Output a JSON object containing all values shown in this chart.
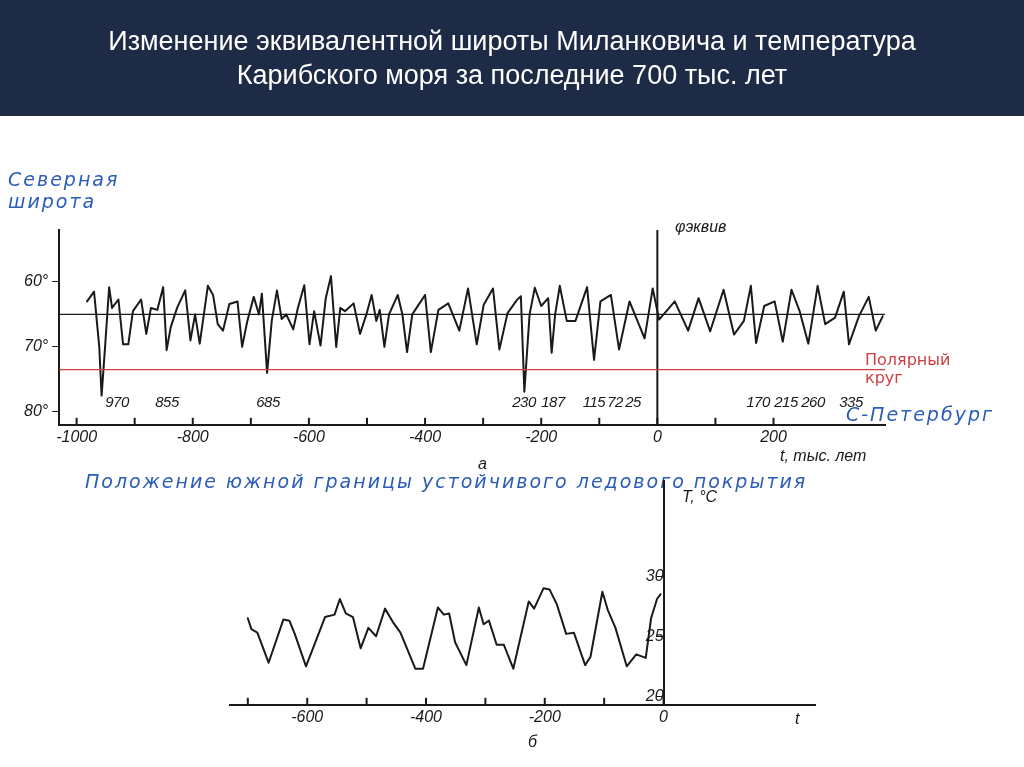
{
  "chart_data": [
    {
      "type": "line",
      "title": "Изменение эквивалентной широты Миланковича и температура Карибского моря за последние 700  тыс. лет",
      "xlabel": "t, тыс. лет",
      "ylabel": "Северная широта",
      "color": "#1a1a1a",
      "marker": "none",
      "grid": false,
      "legend": false,
      "x": [
        -982,
        -970,
        -961,
        -957,
        -951,
        -944,
        -939,
        -928,
        -920,
        -911,
        -903,
        -889,
        -880,
        -872,
        -861,
        -851,
        -845,
        -838,
        -827,
        -813,
        -804,
        -796,
        -788,
        -774,
        -765,
        -757,
        -748,
        -737,
        -723,
        -715,
        -706,
        -695,
        -686,
        -681,
        -672,
        -664,
        -655,
        -647,
        -639,
        -627,
        -619,
        -608,
        -599,
        -591,
        -580,
        -571,
        -562,
        -553,
        -546,
        -538,
        -523,
        -512,
        -501,
        -492,
        -484,
        -478,
        -470,
        -462,
        -447,
        -439,
        -431,
        -422,
        -411,
        -400,
        -390,
        -377,
        -360,
        -341,
        -326,
        -311,
        -299,
        -283,
        -272,
        -258,
        -242,
        -235,
        -229,
        -220,
        -211,
        -200,
        -188,
        -182,
        -176,
        -168,
        -156,
        -141,
        -121,
        -109,
        -98,
        -80,
        -66,
        -48,
        -22,
        -8,
        3,
        30,
        53,
        71,
        91,
        114,
        132,
        149,
        161,
        170,
        184,
        202,
        216,
        231,
        245,
        260,
        276,
        289,
        306,
        321,
        330,
        347,
        364,
        376,
        388
      ],
      "values": [
        63,
        61.5,
        70,
        77.5,
        70,
        60.8,
        64,
        62.7,
        69.6,
        69.6,
        64.5,
        62.7,
        68,
        64,
        64.3,
        60.8,
        70.5,
        67,
        64,
        61.3,
        69,
        65,
        69.5,
        60.6,
        62,
        66.5,
        67.5,
        63.4,
        63,
        70,
        66,
        62.3,
        65,
        61.8,
        74,
        66,
        61.3,
        65.7,
        65,
        67.3,
        64,
        60.5,
        69.6,
        64.5,
        69.8,
        62.5,
        59.1,
        70,
        64,
        64.5,
        63.3,
        68,
        65,
        62,
        66,
        64.3,
        70,
        65,
        62,
        65,
        70.8,
        65,
        63.5,
        62,
        70.8,
        64.3,
        63.3,
        67.5,
        61,
        69.6,
        63.5,
        61,
        70.4,
        64.8,
        62.8,
        62.2,
        76.9,
        65,
        60.9,
        63.7,
        62.5,
        70.9,
        65,
        60.6,
        66,
        66,
        60.8,
        72,
        63,
        62,
        70.4,
        63,
        68.7,
        61,
        65.8,
        63,
        67.5,
        62.5,
        67.6,
        61.2,
        68.1,
        66,
        60.6,
        69.4,
        63.7,
        63,
        69.2,
        61.2,
        64.5,
        69.5,
        60.6,
        66.5,
        65.5,
        61.5,
        69.6,
        65.3,
        62.3,
        67.5,
        65.3
      ],
      "xlim": [
        -1030,
        392
      ],
      "xticks": [
        -1000,
        {
          "value": -900,
          "label": null
        },
        -800,
        {
          "value": -700,
          "label": null
        },
        -600,
        {
          "value": -500,
          "label": null
        },
        -400,
        {
          "value": -300,
          "label": null
        },
        -200,
        {
          "value": -100,
          "label": null
        },
        0,
        {
          "value": 100,
          "label": null
        },
        200
      ],
      "ylim": [
        82,
        52
      ],
      "yticks": [
        {
          "value": 60,
          "label": "60°"
        },
        {
          "value": 70,
          "label": "70°"
        },
        {
          "value": 80,
          "label": "80°"
        }
      ],
      "ref_lines": [
        {
          "axis": "x",
          "value": 0,
          "color": "#1a1a1a"
        },
        {
          "axis": "y",
          "value": 65,
          "color": "#1a1a1a"
        },
        {
          "axis": "y",
          "value": 73.5,
          "label": "Полярный круг",
          "color": "#d04040"
        }
      ],
      "annotations": [
        "φэквив",
        "а",
        "Положение южной границы устойчивого ледового покрытия",
        "С-Петербург",
        "970",
        "855",
        "685",
        "230",
        "187",
        "115",
        "72",
        "25",
        "170",
        "215",
        "260",
        "335"
      ]
    },
    {
      "type": "line",
      "xlabel": "t",
      "ylabel": "T, °C",
      "color": "#1a1a1a",
      "marker": "none",
      "grid": false,
      "legend": false,
      "x": [
        -700,
        -694,
        -684,
        -665,
        -640,
        -630,
        -621,
        -602,
        -570,
        -554,
        -545,
        -535,
        -523,
        -510,
        -497,
        -484,
        -469,
        -456,
        -443,
        -418,
        -405,
        -380,
        -370,
        -361,
        -351,
        -332,
        -311,
        -303,
        -294,
        -281,
        -269,
        -253,
        -227,
        -218,
        -202,
        -192,
        -180,
        -164,
        -151,
        -132,
        -123,
        -103,
        -94,
        -81,
        -62,
        -46,
        -30,
        -21,
        -11,
        -5
      ],
      "values": [
        26.5,
        25.6,
        25.3,
        22.8,
        26.4,
        26.3,
        25.2,
        22.5,
        26.6,
        26.8,
        28.1,
        26.9,
        26.6,
        24,
        25.7,
        25,
        27.3,
        26.2,
        25.3,
        22.3,
        22.3,
        27.4,
        26.8,
        26.9,
        24.5,
        22.6,
        27.4,
        26,
        26.3,
        24.3,
        24.3,
        22.3,
        27.9,
        27.3,
        29,
        28.9,
        27.7,
        25.2,
        25.3,
        22.6,
        23.3,
        28.7,
        27.2,
        25.7,
        22.5,
        23.5,
        23.2,
        26.5,
        28.1,
        28.5
      ],
      "xlim": [
        -730,
        255
      ],
      "xticks": [
        {
          "value": -700,
          "label": null
        },
        -600,
        {
          "value": -500,
          "label": null
        },
        -400,
        {
          "value": -300,
          "label": null
        },
        -200,
        {
          "value": -100,
          "label": null
        },
        0
      ],
      "ylim": [
        19.3,
        38
      ],
      "yticks": [
        20,
        25,
        30
      ],
      "annotations": [
        "б"
      ]
    }
  ]
}
